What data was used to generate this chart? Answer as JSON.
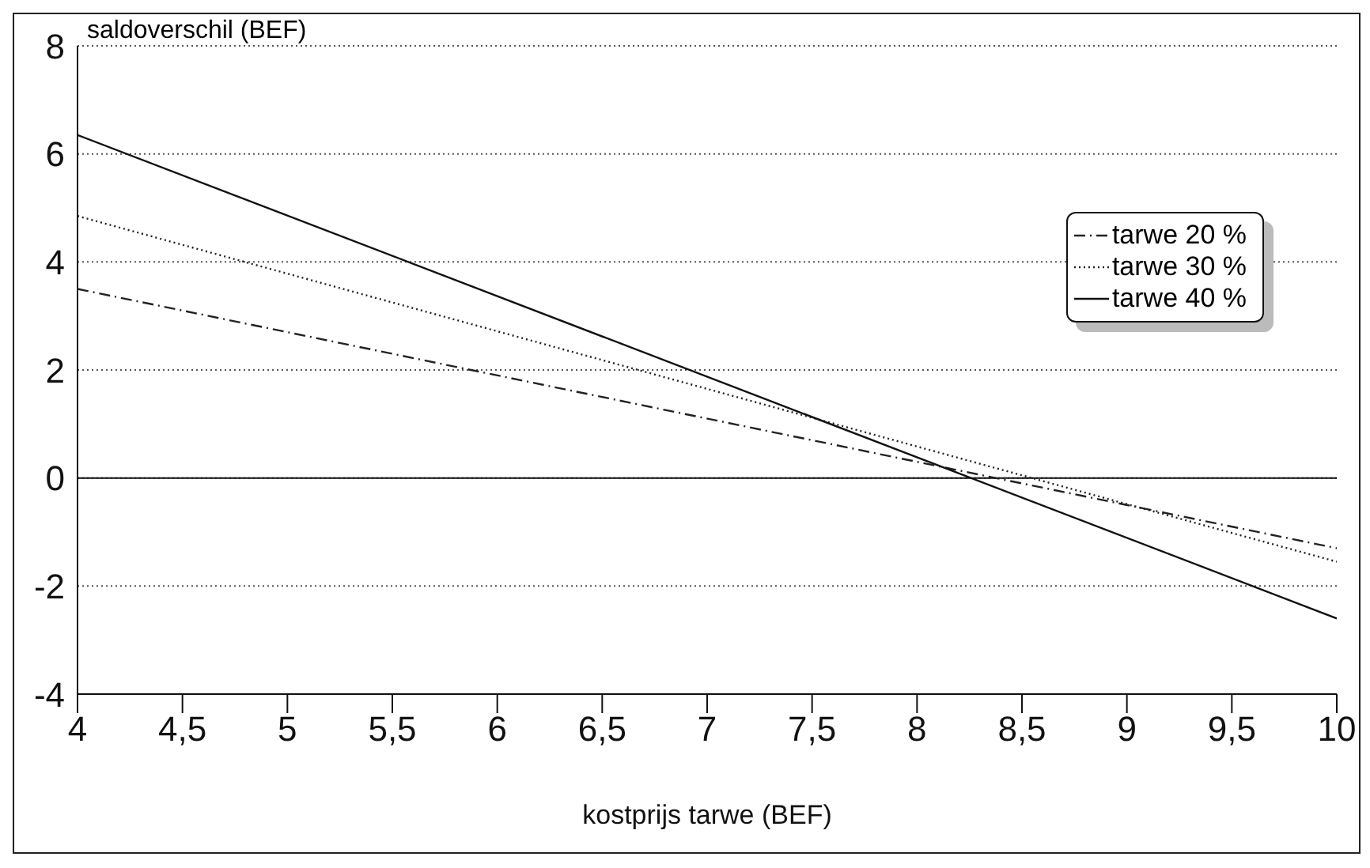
{
  "chart_data": {
    "type": "line",
    "xlabel": "kostprijs tarwe (BEF)",
    "ylabel": "saldoverschil (BEF)",
    "x": [
      4,
      10
    ],
    "series": [
      {
        "name": "tarwe 20 %",
        "color": "#222222",
        "values": [
          3.5,
          -1.3
        ],
        "line_style": "dashed"
      },
      {
        "name": "tarwe 30 %",
        "color": "#222222",
        "values": [
          4.85,
          -1.55
        ],
        "line_style": "dotted"
      },
      {
        "name": "tarwe 40 %",
        "color": "#111111",
        "values": [
          6.35,
          -2.6
        ],
        "line_style": "solid"
      }
    ],
    "xlim": [
      4,
      10
    ],
    "xticks": [
      4,
      {
        "value": 4.5,
        "label": "4,5"
      },
      5,
      {
        "value": 5.5,
        "label": "5,5"
      },
      6,
      {
        "value": 6.5,
        "label": "6,5"
      },
      7,
      {
        "value": 7.5,
        "label": "7,5"
      },
      8,
      {
        "value": 8.5,
        "label": "8,5"
      },
      9,
      {
        "value": 9.5,
        "label": "9,5"
      },
      10
    ],
    "ylim": [
      -4,
      8
    ],
    "yticks": [
      -4,
      -2,
      0,
      2,
      4,
      6,
      8
    ],
    "ref_lines": [
      {
        "axis": "y",
        "value": 0,
        "color": "#111111",
        "line_style": "solid"
      }
    ],
    "grid": "y",
    "legend": "top right",
    "marker": "none"
  }
}
